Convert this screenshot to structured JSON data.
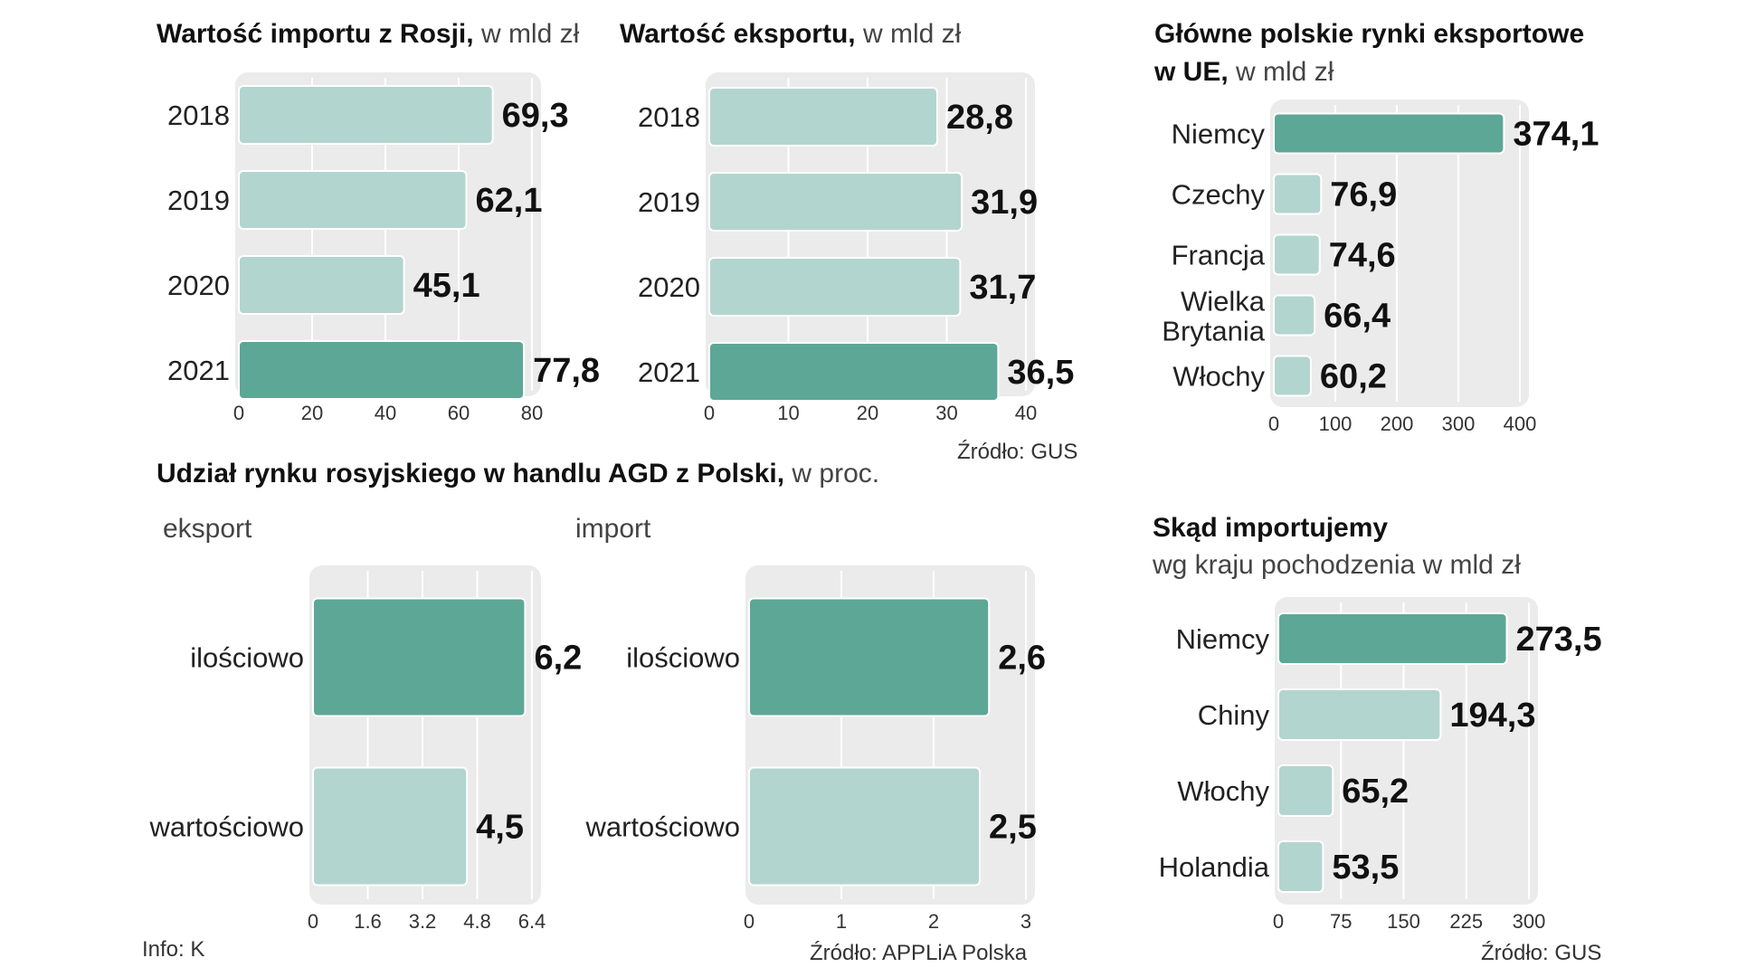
{
  "colors": {
    "dark": "#5da797",
    "light": "#b3d5cf",
    "bg_card": "#ebebeb",
    "grid": "#ffffff"
  },
  "chart_data": [
    {
      "id": "import_rosja",
      "type": "bar",
      "title": "Wartość importu z Rosji,",
      "unit": "w mld zł",
      "categories": [
        "2018",
        "2019",
        "2020",
        "2021"
      ],
      "values": [
        69.3,
        62.1,
        45.1,
        77.8
      ],
      "value_labels": [
        "69,3",
        "62,1",
        "45,1",
        "77,8"
      ],
      "highlight": [
        false,
        false,
        false,
        true
      ],
      "xlim": [
        0,
        80
      ],
      "ticks": [
        "0",
        "20",
        "40",
        "60",
        "80"
      ],
      "tick_values": [
        0,
        20,
        40,
        60,
        80
      ]
    },
    {
      "id": "eksport",
      "type": "bar",
      "title": "Wartość eksportu,",
      "unit": "w mld zł",
      "categories": [
        "2018",
        "2019",
        "2020",
        "2021"
      ],
      "values": [
        28.8,
        31.9,
        31.7,
        36.5
      ],
      "value_labels": [
        "28,8",
        "31,9",
        "31,7",
        "36,5"
      ],
      "highlight": [
        false,
        false,
        false,
        true
      ],
      "xlim": [
        0,
        40
      ],
      "ticks": [
        "0",
        "10",
        "20",
        "30",
        "40"
      ],
      "tick_values": [
        0,
        10,
        20,
        30,
        40
      ],
      "source": "Źródło: GUS"
    },
    {
      "id": "rynki_eksportowe",
      "type": "bar",
      "title": "Główne polskie rynki eksportowe",
      "title2": "w UE,",
      "unit": "w mld zł",
      "categories": [
        "Niemcy",
        "Czechy",
        "Francja",
        "Wielka Brytania",
        "Włochy"
      ],
      "values": [
        374.1,
        76.9,
        74.6,
        66.4,
        60.2
      ],
      "value_labels": [
        "374,1",
        "76,9",
        "74,6",
        "66,4",
        "60,2"
      ],
      "highlight": [
        true,
        false,
        false,
        false,
        false
      ],
      "xlim": [
        0,
        400
      ],
      "ticks": [
        "0",
        "100",
        "200",
        "300",
        "400"
      ],
      "tick_values": [
        0,
        100,
        200,
        300,
        400
      ]
    },
    {
      "id": "agd_eksport",
      "type": "bar",
      "section_title": "Udział rynku rosyjskiego w handlu AGD z Polski,",
      "section_unit": "w proc.",
      "subtitle": "eksport",
      "categories": [
        "ilościowo",
        "wartościowo"
      ],
      "values": [
        6.2,
        4.5
      ],
      "value_labels": [
        "6,2",
        "4,5"
      ],
      "highlight": [
        true,
        false
      ],
      "xlim": [
        0,
        6.4
      ],
      "ticks": [
        "0",
        "1.6",
        "3.2",
        "4.8",
        "6.4"
      ],
      "tick_values": [
        0,
        1.6,
        3.2,
        4.8,
        6.4
      ],
      "info": "Info: K"
    },
    {
      "id": "agd_import",
      "type": "bar",
      "subtitle": "import",
      "categories": [
        "ilościowo",
        "wartościowo"
      ],
      "values": [
        2.6,
        2.5
      ],
      "value_labels": [
        "2,6",
        "2,5"
      ],
      "highlight": [
        true,
        false
      ],
      "xlim": [
        0,
        3
      ],
      "ticks": [
        "0",
        "1",
        "2",
        "3"
      ],
      "tick_values": [
        0,
        1,
        2,
        3
      ],
      "source": "Źródło: APPLiA Polska"
    },
    {
      "id": "skad_importujemy",
      "type": "bar",
      "title": "Skąd importujemy",
      "subtitle": "wg kraju pochodzenia w mld zł",
      "categories": [
        "Niemcy",
        "Chiny",
        "Włochy",
        "Holandia"
      ],
      "values": [
        273.5,
        194.3,
        65.2,
        53.5
      ],
      "value_labels": [
        "273,5",
        "194,3",
        "65,2",
        "53,5"
      ],
      "highlight": [
        true,
        false,
        false,
        false
      ],
      "xlim": [
        0,
        300
      ],
      "ticks": [
        "0",
        "75",
        "150",
        "225",
        "300"
      ],
      "tick_values": [
        0,
        75,
        150,
        225,
        300
      ],
      "source": "Źródło: GUS"
    }
  ]
}
